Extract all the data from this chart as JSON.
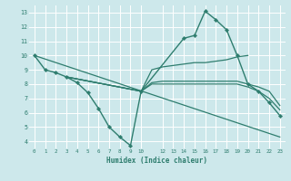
{
  "line_main": {
    "x": [
      0,
      1,
      2,
      3,
      4,
      5,
      6,
      7,
      8,
      9,
      10,
      14,
      15,
      16,
      17,
      18,
      19,
      20,
      21,
      22,
      23
    ],
    "y": [
      10,
      9,
      8.8,
      8.5,
      8.1,
      7.4,
      6.3,
      5.0,
      4.3,
      3.7,
      7.5,
      11.2,
      11.4,
      13.1,
      12.5,
      11.8,
      10.0,
      8.0,
      7.5,
      6.7,
      5.8
    ],
    "color": "#2e7d6e",
    "linewidth": 1.0
  },
  "line_upper": {
    "x": [
      3,
      10,
      11,
      12,
      13,
      14,
      15,
      16,
      17,
      18,
      19,
      20
    ],
    "y": [
      8.5,
      7.5,
      9.0,
      9.2,
      9.3,
      9.4,
      9.5,
      9.5,
      9.6,
      9.7,
      9.9,
      10.0
    ],
    "color": "#2e7d6e",
    "linewidth": 0.9
  },
  "line_mid1": {
    "x": [
      3,
      10,
      11,
      12,
      13,
      14,
      15,
      16,
      17,
      18,
      19,
      20,
      21,
      22,
      23
    ],
    "y": [
      8.5,
      7.5,
      8.1,
      8.2,
      8.2,
      8.2,
      8.2,
      8.2,
      8.2,
      8.2,
      8.2,
      8.0,
      7.8,
      7.5,
      6.5
    ],
    "color": "#2e7d6e",
    "linewidth": 0.9
  },
  "line_mid2": {
    "x": [
      3,
      10,
      11,
      12,
      13,
      14,
      15,
      16,
      17,
      18,
      19,
      20,
      21,
      22,
      23
    ],
    "y": [
      8.5,
      7.5,
      8.0,
      8.0,
      8.0,
      8.0,
      8.0,
      8.0,
      8.0,
      8.0,
      8.0,
      7.8,
      7.5,
      7.0,
      6.2
    ],
    "color": "#2e7d6e",
    "linewidth": 0.9
  },
  "line_diag": {
    "x": [
      0,
      23
    ],
    "y": [
      10,
      4.3
    ],
    "color": "#2e7d6e",
    "linewidth": 0.9
  },
  "xlabel": "Humidex (Indice chaleur)",
  "xlim": [
    -0.5,
    23.5
  ],
  "ylim": [
    3.5,
    13.5
  ],
  "xticks": [
    0,
    1,
    2,
    3,
    4,
    5,
    6,
    7,
    8,
    9,
    10,
    12,
    13,
    14,
    15,
    16,
    17,
    18,
    19,
    20,
    21,
    22,
    23
  ],
  "yticks": [
    4,
    5,
    6,
    7,
    8,
    9,
    10,
    11,
    12,
    13
  ],
  "bg_color": "#cde8eb",
  "grid_color": "#ffffff",
  "line_color": "#2e7d6e"
}
